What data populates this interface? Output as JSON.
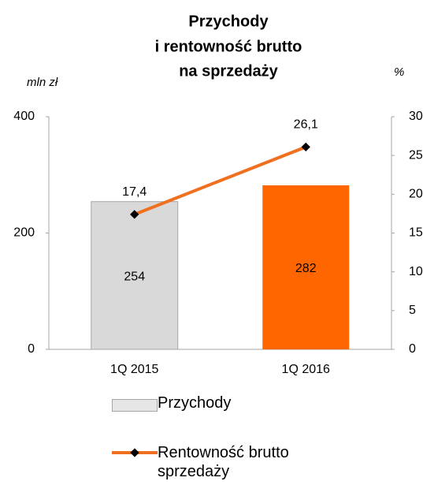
{
  "chart_data": {
    "type": "bar_line",
    "title": [
      "Przychody",
      "i rentowność brutto",
      "na sprzedaży"
    ],
    "y_label": "mln zł",
    "y2_label": "%",
    "categories": [
      "1Q 2015",
      "1Q 2016"
    ],
    "series": [
      {
        "name": "Przychody",
        "type": "bar",
        "colors": [
          "#d9d9d9",
          "#ff6600"
        ],
        "color": "#d9d9d9",
        "values": [
          254,
          282
        ]
      },
      {
        "name": "Rentowność brutto sprzedaży",
        "type": "line",
        "axis": "y2",
        "color": "#f07020",
        "values": [
          17.4,
          26.1
        ],
        "value_labels": [
          "17,4",
          "26,1"
        ]
      }
    ],
    "ylim": [
      0,
      400
    ],
    "yticks": [
      0,
      200,
      400
    ],
    "y2lim": [
      0,
      30
    ],
    "y2ticks": [
      0,
      5,
      10,
      15,
      20,
      25,
      30
    ],
    "grid": false
  }
}
